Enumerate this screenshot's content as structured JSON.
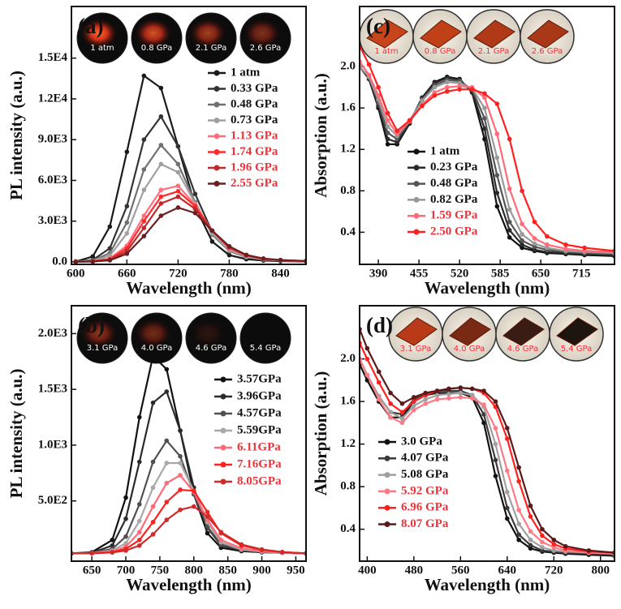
{
  "chart_data": [
    {
      "type": "line",
      "panel_label": "(a)",
      "xlabel": "Wavelength (nm)",
      "ylabel": "PL intensity (a.u.)",
      "insets": [
        "1 atm",
        "0.8 GPa",
        "2.1 GPa",
        "2.6 GPa"
      ],
      "xlim": [
        595,
        870
      ],
      "xticks": [
        600,
        660,
        720,
        780,
        840
      ],
      "ylim": [
        -180,
        18800
      ],
      "yticks": [
        {
          "value": 0,
          "label": "0.0"
        },
        {
          "value": 3000,
          "label": "3.0E3"
        },
        {
          "value": 6000,
          "label": "6.0E3"
        },
        {
          "value": 9000,
          "label": "9.0E3"
        },
        {
          "value": 12000,
          "label": "1.2E4"
        },
        {
          "value": 15000,
          "label": "1.5E4"
        }
      ],
      "x": [
        600,
        620,
        640,
        660,
        680,
        700,
        720,
        740,
        760,
        780,
        800,
        820,
        840,
        870
      ],
      "series": [
        {
          "name": "1 atm",
          "color": "#1a1a1a",
          "label_color": "#111111",
          "values": [
            30,
            400,
            2600,
            8100,
            13700,
            12800,
            8500,
            4100,
            1500,
            500,
            200,
            100,
            60,
            30
          ]
        },
        {
          "name": "0.33 GPa",
          "color": "#333333",
          "label_color": "#111111",
          "values": [
            20,
            150,
            1000,
            4100,
            9000,
            10700,
            8500,
            5000,
            2200,
            800,
            350,
            180,
            100,
            50
          ]
        },
        {
          "name": "0.48 GPa",
          "color": "#707070",
          "label_color": "#111111",
          "values": [
            20,
            100,
            650,
            2900,
            6800,
            8600,
            7200,
            4400,
            2000,
            800,
            350,
            180,
            100,
            50
          ]
        },
        {
          "name": "0.73 GPa",
          "color": "#a0a0a0",
          "label_color": "#111111",
          "values": [
            15,
            80,
            450,
            2100,
            5300,
            7200,
            6600,
            4300,
            2100,
            850,
            380,
            190,
            110,
            50
          ]
        },
        {
          "name": "1.13 GPa",
          "color": "#ff6f7f",
          "label_color": "#e8343a",
          "values": [
            10,
            50,
            250,
            1200,
            3400,
            5300,
            5600,
            4200,
            2300,
            1000,
            450,
            220,
            120,
            60
          ]
        },
        {
          "name": "1.74 GPa",
          "color": "#ff2a2a",
          "label_color": "#e8343a",
          "values": [
            10,
            40,
            200,
            1000,
            3000,
            4800,
            5200,
            4100,
            2300,
            1050,
            480,
            230,
            130,
            60
          ]
        },
        {
          "name": "1.96 GPa",
          "color": "#c0282d",
          "label_color": "#e8343a",
          "values": [
            10,
            30,
            150,
            800,
            2500,
            4300,
            4800,
            3900,
            2300,
            1100,
            500,
            240,
            130,
            60
          ]
        },
        {
          "name": "2.55 GPa",
          "color": "#6b1f1f",
          "label_color": "#e8343a",
          "values": [
            10,
            30,
            120,
            600,
            1900,
            3400,
            4000,
            3600,
            2300,
            1150,
            520,
            250,
            140,
            70
          ]
        }
      ]
    },
    {
      "type": "line",
      "panel_label": "(b)",
      "xlabel": "Wavelength (nm)",
      "ylabel": "PL intensity (a.u.)",
      "insets": [
        "3.1 GPa",
        "4.0 GPa",
        "4.6 GPa",
        "5.4 GPa"
      ],
      "xlim": [
        620,
        965
      ],
      "xticks": [
        650,
        700,
        750,
        800,
        850,
        900,
        950
      ],
      "ylim": [
        -40,
        2250
      ],
      "yticks": [
        {
          "value": 500,
          "label": "5.0E2"
        },
        {
          "value": 1000,
          "label": "1.0E3"
        },
        {
          "value": 1500,
          "label": "1.5E3"
        },
        {
          "value": 2000,
          "label": "2.0E3"
        }
      ],
      "x": [
        620,
        650,
        680,
        700,
        720,
        740,
        760,
        780,
        800,
        820,
        840,
        870,
        900,
        930,
        965
      ],
      "series": [
        {
          "name": "3.57GPa",
          "color": "#111111",
          "label_color": "#111111",
          "values": [
            30,
            40,
            150,
            530,
            1250,
            1800,
            1680,
            1130,
            560,
            210,
            80,
            50,
            40,
            35,
            30
          ]
        },
        {
          "name": "3.96GPa",
          "color": "#2b2b2b",
          "label_color": "#111111",
          "values": [
            30,
            35,
            100,
            340,
            850,
            1380,
            1480,
            1130,
            620,
            260,
            100,
            55,
            40,
            35,
            30
          ]
        },
        {
          "name": "4.57GPa",
          "color": "#505050",
          "label_color": "#111111",
          "values": [
            30,
            35,
            70,
            180,
            470,
            850,
            1040,
            900,
            560,
            270,
            110,
            60,
            45,
            35,
            30
          ]
        },
        {
          "name": "5.59GPa",
          "color": "#a8a8a8",
          "label_color": "#111111",
          "values": [
            30,
            33,
            55,
            120,
            320,
            620,
            840,
            840,
            590,
            310,
            130,
            65,
            45,
            35,
            30
          ]
        },
        {
          "name": "6.11GPa",
          "color": "#ff6b78",
          "label_color": "#e8343a",
          "values": [
            30,
            32,
            45,
            90,
            220,
            450,
            660,
            730,
            580,
            330,
            150,
            75,
            50,
            38,
            30
          ]
        },
        {
          "name": "7.16GPa",
          "color": "#ff2020",
          "label_color": "#e8343a",
          "values": [
            30,
            32,
            40,
            70,
            150,
            310,
            490,
            600,
            590,
            400,
            210,
            100,
            60,
            40,
            30
          ]
        },
        {
          "name": "8.05GPa",
          "color": "#d02a2a",
          "label_color": "#e8343a",
          "values": [
            30,
            30,
            38,
            55,
            100,
            200,
            330,
            420,
            450,
            360,
            220,
            110,
            65,
            42,
            30
          ]
        }
      ]
    },
    {
      "type": "line",
      "panel_label": "(c)",
      "xlabel": "Wavelength (nm)",
      "ylabel": "Absorption (a.u.)",
      "insets": [
        "1 atm",
        "0.8 GPa",
        "2.1 GPa",
        "2.6 GPa"
      ],
      "xlim": [
        360,
        768
      ],
      "xticks": [
        390,
        455,
        520,
        585,
        650,
        715
      ],
      "ylim": [
        0.09,
        2.58
      ],
      "yticks": [
        0.4,
        0.8,
        1.2,
        1.6,
        {
          "value": 2,
          "label": "2.0"
        }
      ],
      "x": [
        360,
        375,
        390,
        405,
        420,
        440,
        460,
        480,
        500,
        520,
        540,
        560,
        580,
        600,
        620,
        640,
        660,
        690,
        720,
        768
      ],
      "series": [
        {
          "name": "1 atm",
          "color": "#111111",
          "label_color": "#111111",
          "values": [
            2.0,
            1.88,
            1.6,
            1.25,
            1.25,
            1.45,
            1.7,
            1.85,
            1.9,
            1.88,
            1.75,
            1.3,
            0.65,
            0.35,
            0.25,
            0.22,
            0.2,
            0.19,
            0.18,
            0.17
          ]
        },
        {
          "name": "0.23 GPa",
          "color": "#2a2a2a",
          "label_color": "#111111",
          "values": [
            2.0,
            1.88,
            1.62,
            1.3,
            1.27,
            1.46,
            1.7,
            1.84,
            1.89,
            1.87,
            1.76,
            1.4,
            0.78,
            0.42,
            0.28,
            0.23,
            0.21,
            0.2,
            0.19,
            0.18
          ]
        },
        {
          "name": "0.48 GPa",
          "color": "#555555",
          "label_color": "#111111",
          "values": [
            2.0,
            1.9,
            1.65,
            1.36,
            1.3,
            1.47,
            1.68,
            1.82,
            1.87,
            1.86,
            1.78,
            1.5,
            0.95,
            0.5,
            0.32,
            0.26,
            0.23,
            0.21,
            0.2,
            0.19
          ]
        },
        {
          "name": "0.82 GPa",
          "color": "#999999",
          "label_color": "#111111",
          "values": [
            2.0,
            1.9,
            1.68,
            1.42,
            1.33,
            1.48,
            1.67,
            1.8,
            1.85,
            1.84,
            1.79,
            1.6,
            1.12,
            0.62,
            0.38,
            0.29,
            0.25,
            0.22,
            0.21,
            0.2
          ]
        },
        {
          "name": "1.59 GPa",
          "color": "#ff6b78",
          "label_color": "#e8343a",
          "values": [
            2.05,
            1.92,
            1.72,
            1.48,
            1.35,
            1.47,
            1.63,
            1.75,
            1.8,
            1.81,
            1.8,
            1.7,
            1.35,
            0.82,
            0.48,
            0.34,
            0.28,
            0.24,
            0.22,
            0.21
          ]
        },
        {
          "name": "2.50 GPa",
          "color": "#ff2020",
          "label_color": "#e8343a",
          "values": [
            2.2,
            2.02,
            1.8,
            1.55,
            1.38,
            1.48,
            1.62,
            1.72,
            1.76,
            1.78,
            1.78,
            1.74,
            1.64,
            1.3,
            0.8,
            0.5,
            0.36,
            0.28,
            0.25,
            0.22
          ]
        }
      ]
    },
    {
      "type": "line",
      "panel_label": "(d)",
      "xlabel": "Wavelength (nm)",
      "ylabel": "Absorption (a.u.)",
      "insets": [
        "3.1 GPa",
        "4.0 GPa",
        "4.6 GPa",
        "5.4 GPa"
      ],
      "xlim": [
        387,
        824
      ],
      "xticks": [
        400,
        480,
        560,
        640,
        720,
        800
      ],
      "ylim": [
        0.1,
        2.5
      ],
      "yticks": [
        0.4,
        0.8,
        1.2,
        1.6,
        {
          "value": 2,
          "label": "2.0"
        }
      ],
      "x": [
        387,
        400,
        420,
        440,
        460,
        480,
        500,
        520,
        540,
        560,
        580,
        600,
        620,
        640,
        660,
        680,
        700,
        720,
        740,
        780,
        824
      ],
      "series": [
        {
          "name": "3.0 GPa",
          "color": "#111111",
          "label_color": "#111111",
          "values": [
            1.95,
            1.8,
            1.6,
            1.45,
            1.45,
            1.6,
            1.66,
            1.68,
            1.68,
            1.68,
            1.64,
            1.4,
            0.9,
            0.5,
            0.3,
            0.22,
            0.19,
            0.18,
            0.17,
            0.16,
            0.15
          ]
        },
        {
          "name": "4.07 GPa",
          "color": "#3a3a3a",
          "label_color": "#111111",
          "values": [
            2.0,
            1.85,
            1.65,
            1.5,
            1.48,
            1.62,
            1.68,
            1.7,
            1.7,
            1.7,
            1.66,
            1.48,
            1.05,
            0.6,
            0.35,
            0.25,
            0.2,
            0.19,
            0.18,
            0.17,
            0.16
          ]
        },
        {
          "name": "5.08 GPa",
          "color": "#a0a0a0",
          "label_color": "#111111",
          "values": [
            2.0,
            1.85,
            1.65,
            1.5,
            1.44,
            1.56,
            1.62,
            1.66,
            1.67,
            1.68,
            1.66,
            1.55,
            1.2,
            0.75,
            0.45,
            0.3,
            0.23,
            0.2,
            0.19,
            0.18,
            0.17
          ]
        },
        {
          "name": "5.92 GPa",
          "color": "#ff7a85",
          "label_color": "#e8343a",
          "values": [
            2.0,
            1.85,
            1.62,
            1.45,
            1.4,
            1.52,
            1.58,
            1.62,
            1.63,
            1.64,
            1.63,
            1.57,
            1.35,
            0.95,
            0.58,
            0.38,
            0.28,
            0.23,
            0.2,
            0.18,
            0.17
          ]
        },
        {
          "name": "6.96 GPa",
          "color": "#ff2020",
          "label_color": "#e8343a",
          "values": [
            2.15,
            2.0,
            1.78,
            1.58,
            1.5,
            1.6,
            1.66,
            1.7,
            1.72,
            1.73,
            1.72,
            1.68,
            1.55,
            1.25,
            0.85,
            0.52,
            0.34,
            0.26,
            0.22,
            0.19,
            0.18
          ]
        },
        {
          "name": "8.07 GPa",
          "color": "#5a1a1a",
          "label_color": "#e8343a",
          "values": [
            2.28,
            2.1,
            1.88,
            1.68,
            1.58,
            1.64,
            1.68,
            1.7,
            1.72,
            1.73,
            1.72,
            1.7,
            1.6,
            1.35,
            0.98,
            0.62,
            0.4,
            0.3,
            0.24,
            0.2,
            0.18
          ]
        }
      ]
    }
  ]
}
